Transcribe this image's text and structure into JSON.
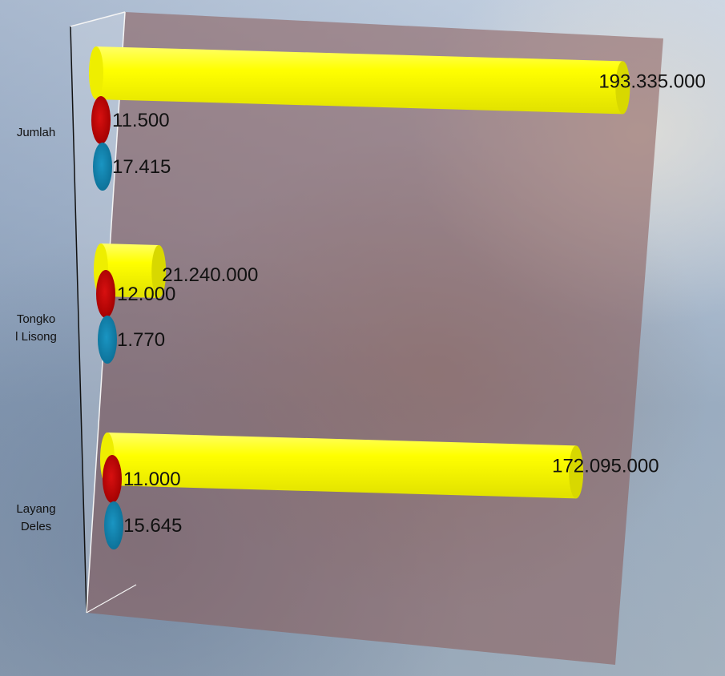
{
  "chart_data": {
    "type": "bar",
    "orientation": "horizontal",
    "style": "3d-cylinder",
    "categories": [
      "Jumlah",
      "Tongko\nl Lisong",
      "Layang\nDeles"
    ],
    "series": [
      {
        "values": [
          193335000,
          21240000,
          172095000
        ],
        "labels": [
          "193.335.000",
          "21.240.000",
          "172.095.000"
        ],
        "color": "#ffff00"
      },
      {
        "values": [
          11500,
          12000,
          11000
        ],
        "labels": [
          "11.500",
          "12.000",
          "11.000"
        ],
        "color": "#c00000"
      },
      {
        "values": [
          17415,
          1770,
          15645
        ],
        "labels": [
          "17.415",
          "1.770",
          "15.645"
        ],
        "color": "#1385b0"
      }
    ],
    "xlim": [
      0,
      200000000
    ],
    "grid": false,
    "legend": "none",
    "wall_color": "#8b5a55"
  }
}
